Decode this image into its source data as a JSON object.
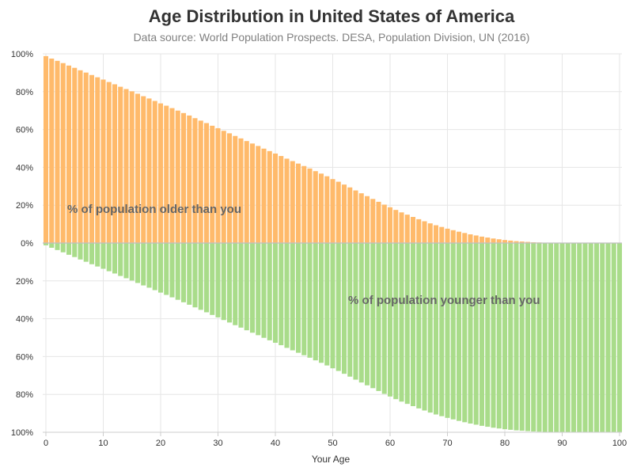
{
  "title": "Age Distribution in United States of America",
  "subtitle": "Data source: World Population Prospects. DESA, Population Division, UN (2016)",
  "colors": {
    "older": "#ffba6b",
    "younger": "#a9dc8a",
    "grid": "#e6e6e6",
    "zero": "#bfbfbf"
  },
  "chart_data": {
    "type": "bar",
    "xlabel": "Your Age",
    "ylabel": "",
    "xlim": [
      0,
      100
    ],
    "ylim": [
      -100,
      100
    ],
    "x_ticks": [
      0,
      10,
      20,
      30,
      40,
      50,
      60,
      70,
      80,
      90,
      100
    ],
    "y_tick_labels": [
      "100%",
      "80%",
      "60%",
      "40%",
      "20%",
      "0%",
      "20%",
      "40%",
      "60%",
      "80%",
      "100%"
    ],
    "y_tick_values": [
      100,
      80,
      60,
      40,
      20,
      0,
      -20,
      -40,
      -60,
      -80,
      -100
    ],
    "grid": true,
    "annotations": [
      {
        "text": "% of population older than you"
      },
      {
        "text": "% of population younger than you"
      }
    ],
    "ages": [
      0,
      1,
      2,
      3,
      4,
      5,
      6,
      7,
      8,
      9,
      10,
      11,
      12,
      13,
      14,
      15,
      16,
      17,
      18,
      19,
      20,
      21,
      22,
      23,
      24,
      25,
      26,
      27,
      28,
      29,
      30,
      31,
      32,
      33,
      34,
      35,
      36,
      37,
      38,
      39,
      40,
      41,
      42,
      43,
      44,
      45,
      46,
      47,
      48,
      49,
      50,
      51,
      52,
      53,
      54,
      55,
      56,
      57,
      58,
      59,
      60,
      61,
      62,
      63,
      64,
      65,
      66,
      67,
      68,
      69,
      70,
      71,
      72,
      73,
      74,
      75,
      76,
      77,
      78,
      79,
      80,
      81,
      82,
      83,
      84,
      85,
      86,
      87,
      88,
      89,
      90,
      91,
      92,
      93,
      94,
      95,
      96,
      97,
      98,
      99,
      100
    ],
    "series": [
      {
        "name": "% of population older than you",
        "values": [
          98.8,
          97.5,
          96.3,
          95.1,
          93.8,
          92.6,
          91.3,
          90.1,
          88.8,
          87.6,
          86.4,
          85.1,
          83.9,
          82.6,
          81.4,
          80.2,
          78.9,
          77.6,
          76.4,
          75.1,
          73.8,
          72.6,
          71.3,
          70.0,
          68.7,
          67.4,
          66.0,
          64.7,
          63.4,
          62.0,
          60.7,
          59.3,
          58.0,
          56.6,
          55.3,
          53.9,
          52.6,
          51.3,
          49.9,
          48.6,
          47.3,
          46.0,
          44.6,
          43.3,
          42.0,
          40.7,
          39.4,
          38.0,
          36.7,
          35.3,
          33.8,
          32.4,
          30.9,
          29.4,
          27.8,
          26.3,
          24.8,
          23.3,
          21.8,
          20.3,
          18.9,
          17.5,
          16.2,
          15.0,
          13.8,
          12.6,
          11.5,
          10.4,
          9.4,
          8.5,
          7.6,
          6.8,
          6.0,
          5.3,
          4.6,
          4.0,
          3.4,
          2.9,
          2.4,
          2.0,
          1.6,
          1.3,
          1.0,
          0.8,
          0.6,
          0.4,
          0.3,
          0.2,
          0.1,
          0.1,
          0.0,
          0.0,
          0.0,
          0.0,
          0.0,
          0.0,
          0.0,
          0.0,
          0.0,
          0.0,
          0.0
        ]
      },
      {
        "name": "% of population younger than you",
        "values": [
          -1.2,
          -2.5,
          -3.7,
          -4.9,
          -6.2,
          -7.4,
          -8.7,
          -9.9,
          -11.2,
          -12.4,
          -13.6,
          -14.9,
          -16.1,
          -17.4,
          -18.6,
          -19.8,
          -21.1,
          -22.4,
          -23.6,
          -24.9,
          -26.2,
          -27.4,
          -28.7,
          -30.0,
          -31.3,
          -32.6,
          -34.0,
          -35.3,
          -36.6,
          -38.0,
          -39.3,
          -40.7,
          -42.0,
          -43.4,
          -44.7,
          -46.1,
          -47.4,
          -48.7,
          -50.1,
          -51.4,
          -52.7,
          -54.0,
          -55.4,
          -56.7,
          -58.0,
          -59.3,
          -60.6,
          -62.0,
          -63.3,
          -64.7,
          -66.2,
          -67.6,
          -69.1,
          -70.6,
          -72.2,
          -73.7,
          -75.2,
          -76.7,
          -78.2,
          -79.7,
          -81.1,
          -82.5,
          -83.8,
          -85.0,
          -86.2,
          -87.4,
          -88.5,
          -89.6,
          -90.6,
          -91.5,
          -92.4,
          -93.2,
          -94.0,
          -94.7,
          -95.4,
          -96.0,
          -96.6,
          -97.1,
          -97.6,
          -98.0,
          -98.4,
          -98.7,
          -99.0,
          -99.2,
          -99.4,
          -99.6,
          -99.7,
          -99.8,
          -99.9,
          -99.9,
          -100.0,
          -100.0,
          -100.0,
          -100.0,
          -100.0,
          -100.0,
          -100.0,
          -100.0,
          -100.0,
          -100.0,
          -100.0
        ]
      }
    ]
  }
}
